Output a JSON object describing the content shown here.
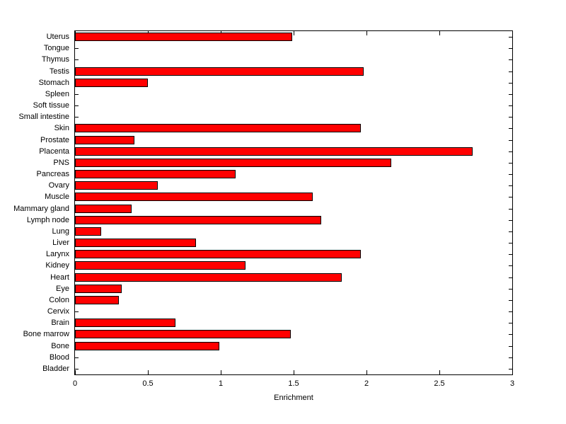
{
  "chart_data": {
    "type": "bar",
    "orientation": "horizontal",
    "title": "",
    "xlabel": "Enrichment",
    "ylabel": "",
    "xlim": [
      0,
      3
    ],
    "xticks": [
      0,
      0.5,
      1,
      1.5,
      2,
      2.5,
      3
    ],
    "xtick_labels": [
      "0",
      "0.5",
      "1",
      "1.5",
      "2",
      "2.5",
      "3"
    ],
    "grid": false,
    "legend": "none",
    "bar_color": "#ff0000",
    "bar_edge_color": "#000000",
    "axis_color": "#000000",
    "background": "#ffffff",
    "categories_top_to_bottom": [
      "Uterus",
      "Tongue",
      "Thymus",
      "Testis",
      "Stomach",
      "Spleen",
      "Soft tissue",
      "Small intestine",
      "Skin",
      "Prostate",
      "Placenta",
      "PNS",
      "Pancreas",
      "Ovary",
      "Muscle",
      "Mammary gland",
      "Lymph node",
      "Lung",
      "Liver",
      "Larynx",
      "Kidney",
      "Heart",
      "Eye",
      "Colon",
      "Cervix",
      "Brain",
      "Bone marrow",
      "Bone",
      "Blood",
      "Bladder"
    ],
    "values": [
      1.49,
      0,
      0,
      1.98,
      0.5,
      0,
      0,
      0,
      1.96,
      0.41,
      2.73,
      2.17,
      1.1,
      0.57,
      1.63,
      0.39,
      1.69,
      0.18,
      0.83,
      1.96,
      1.17,
      1.83,
      0.32,
      0.3,
      0,
      0.69,
      1.48,
      0.99,
      0,
      0
    ]
  }
}
